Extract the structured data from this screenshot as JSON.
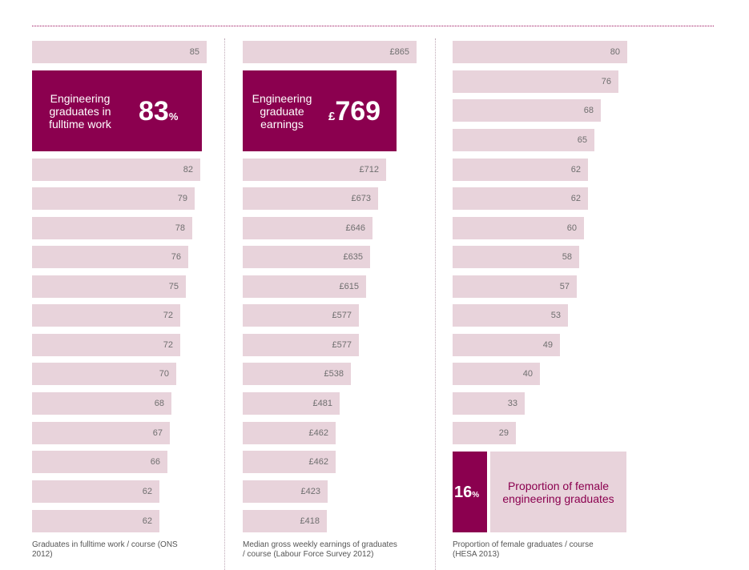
{
  "charts": [
    {
      "highlight": {
        "label": "Engineering graduates in fulltime work",
        "lines": [
          "Engineering",
          "graduates in",
          "fulltime work"
        ],
        "value": "83",
        "unit": "%"
      },
      "caption": "Graduates in fulltime work / course (ONS 2012)",
      "caption_lines": [
        "Graduates in fulltime work / course (ONS",
        "2012)"
      ]
    },
    {
      "highlight": {
        "label": "Engineering graduate earnings",
        "lines": [
          "Engineering",
          "graduate",
          "earnings"
        ],
        "prefix": "£",
        "value": "769"
      },
      "caption": "Median gross weekly earnings of graduates / course (Labour Force Survey 2012)",
      "caption_lines": [
        "Median gross weekly earnings of graduates",
        "/ course (Labour Force Survey 2012)"
      ]
    },
    {
      "highlight": {
        "label": "Proportion of female engineering graduates",
        "lines": [
          "Proportion of female",
          "engineering graduates"
        ],
        "value": "16",
        "unit": "%"
      },
      "caption": "Proportion of female graduates / course (HESA 2013)",
      "caption_lines": [
        "Proportion of female graduates / course",
        "(HESA 2013)"
      ]
    }
  ],
  "chart_data": [
    {
      "type": "bar",
      "orientation": "horizontal",
      "highlight_value": 83,
      "values": [
        85,
        82,
        79,
        78,
        76,
        75,
        72,
        72,
        70,
        68,
        67,
        66,
        62,
        62
      ],
      "labels": [
        "85",
        "82",
        "79",
        "78",
        "76",
        "75",
        "72",
        "72",
        "70",
        "68",
        "67",
        "66",
        "62",
        "62"
      ]
    },
    {
      "type": "bar",
      "orientation": "horizontal",
      "highlight_value": 769,
      "values": [
        865,
        712,
        673,
        646,
        635,
        615,
        577,
        577,
        538,
        481,
        462,
        462,
        423,
        418
      ],
      "labels": [
        "£865",
        "£712",
        "£673",
        "£646",
        "£635",
        "£615",
        "£577",
        "£577",
        "£538",
        "£481",
        "£462",
        "£462",
        "£423",
        "£418"
      ]
    },
    {
      "type": "bar",
      "orientation": "horizontal",
      "highlight_value": 16,
      "values": [
        80,
        76,
        68,
        65,
        62,
        62,
        60,
        58,
        57,
        53,
        49,
        40,
        33,
        29
      ],
      "labels": [
        "80",
        "76",
        "68",
        "65",
        "62",
        "62",
        "60",
        "58",
        "57",
        "53",
        "49",
        "40",
        "33",
        "29"
      ]
    }
  ],
  "colors": {
    "bar": "#e8d3db",
    "highlight": "#8b004f",
    "label": "#6f6f6f",
    "rule": "#9a0f5b"
  }
}
